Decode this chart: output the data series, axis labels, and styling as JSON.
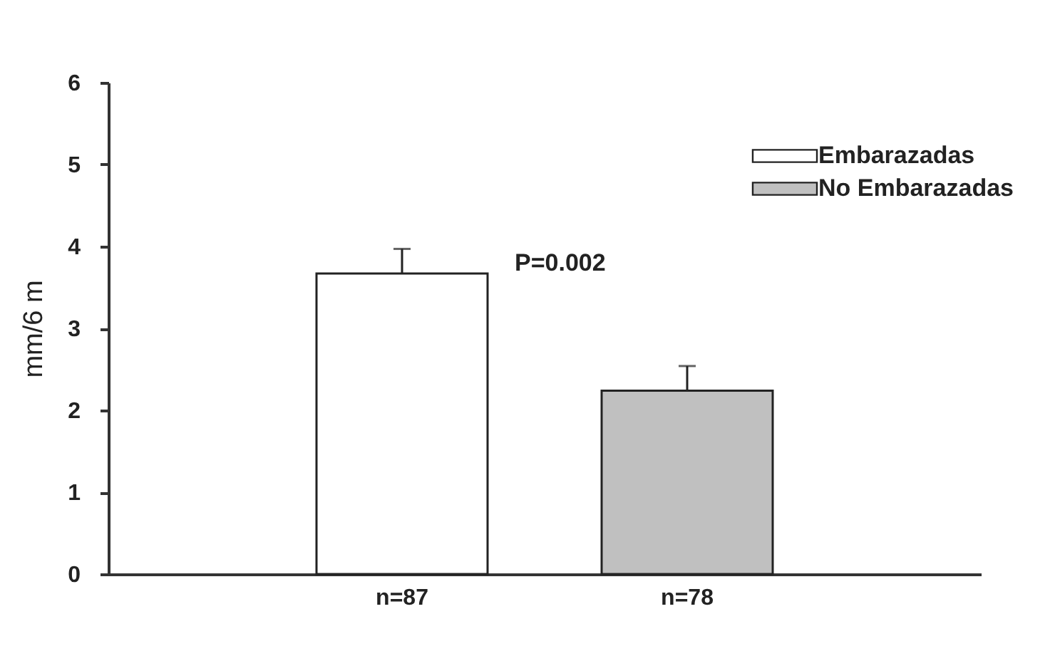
{
  "chart_data": {
    "type": "bar",
    "ylabel": "mm/6 m",
    "categories": [
      "n=87",
      "n=78"
    ],
    "series": [
      {
        "name": "Embarazadas",
        "color": "#ffffff",
        "values": [
          3.67,
          null
        ],
        "errors": [
          [
            3.67,
            3.97
          ],
          null
        ]
      },
      {
        "name": "No Embarazadas",
        "color": "#c0c0c0",
        "values": [
          null,
          2.24
        ],
        "errors": [
          null,
          [
            2.24,
            2.54
          ]
        ]
      }
    ],
    "ylim": [
      0,
      6
    ],
    "yticks": [
      0,
      1,
      2,
      3,
      4,
      5,
      6
    ],
    "legend": "top right",
    "grid": false,
    "annotations": [
      "P=0.002"
    ]
  }
}
